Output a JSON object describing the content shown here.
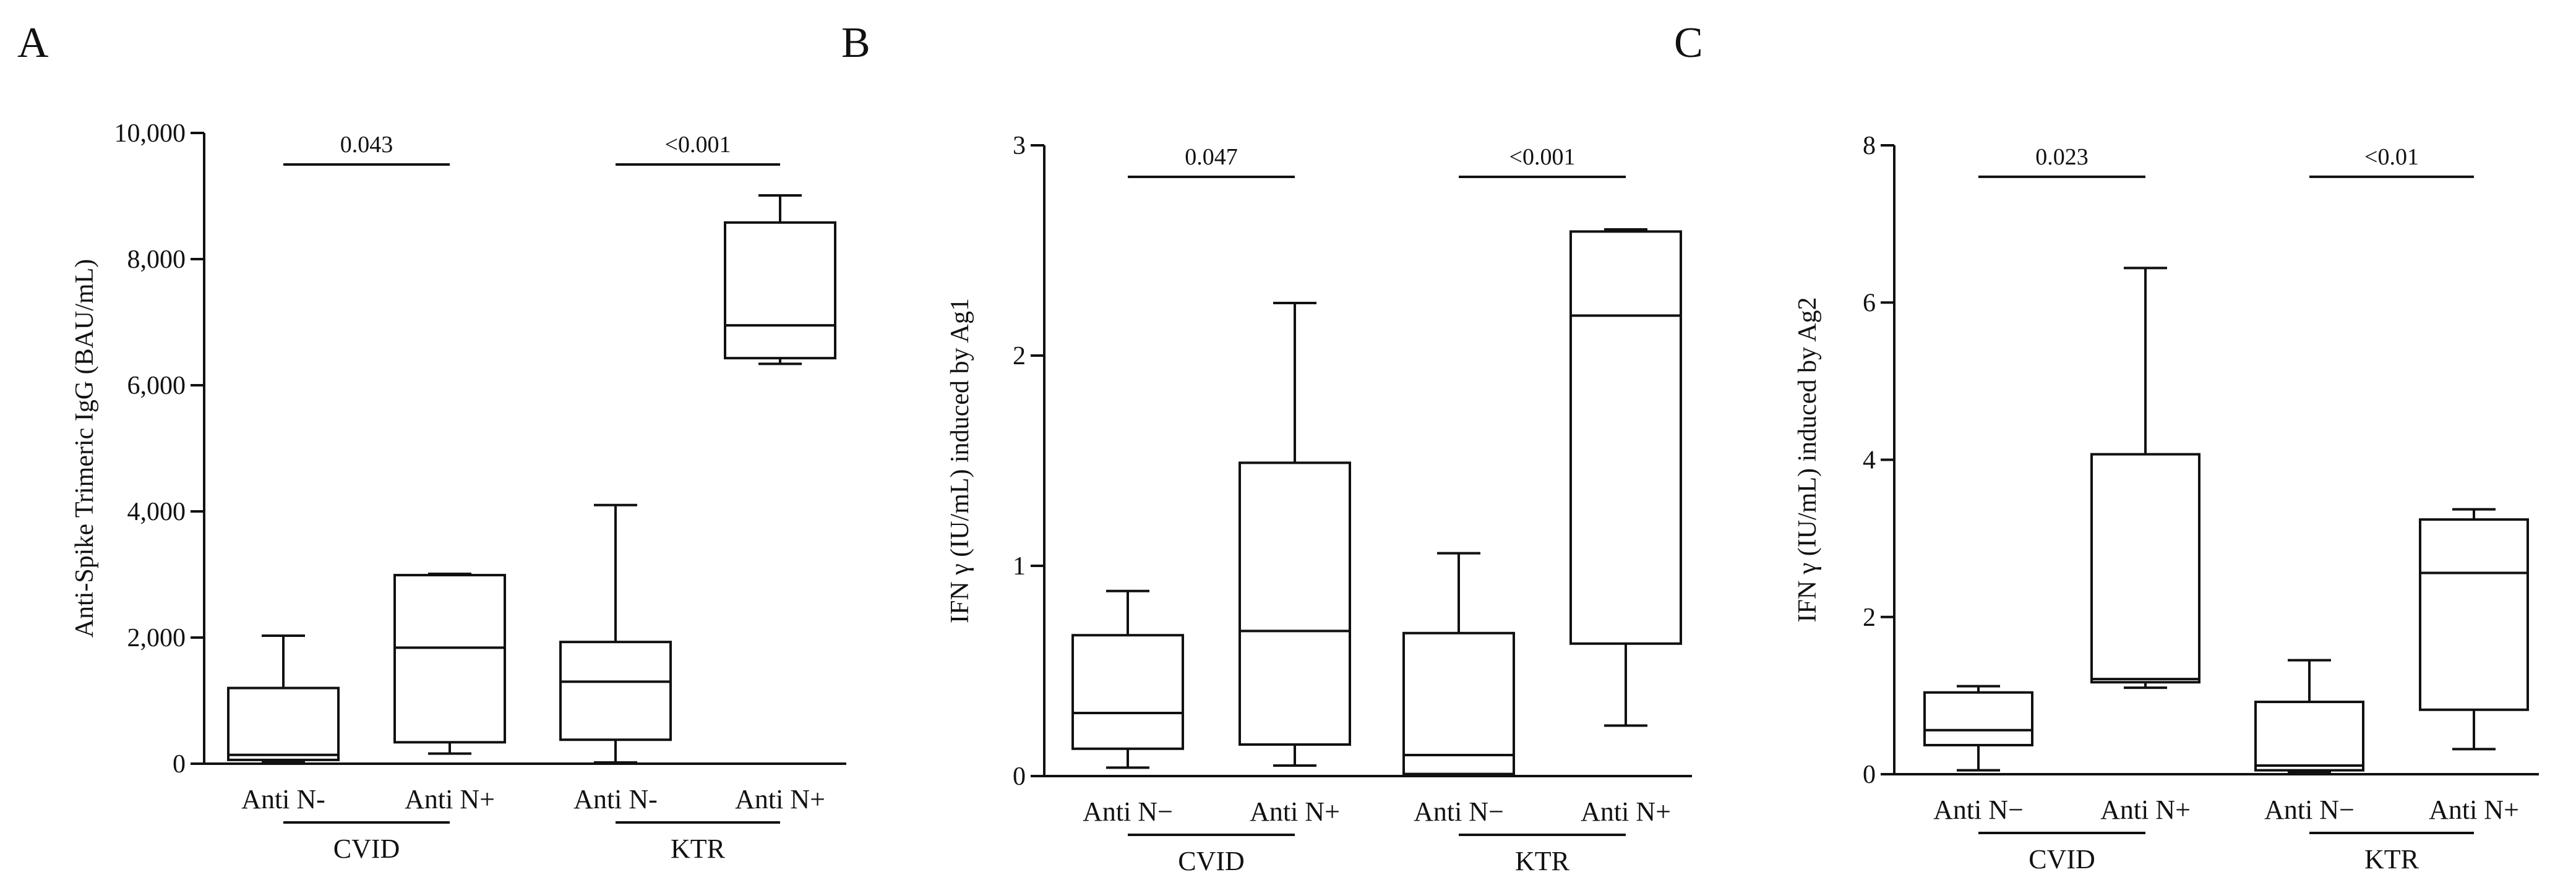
{
  "chart_data": [
    {
      "panel": "A",
      "type": "box",
      "ylabel": "Anti-Spike Trimeric IgG (BAU/mL)",
      "ylim": [
        0,
        10000
      ],
      "yticks": [
        0,
        2000,
        4000,
        6000,
        8000,
        10000
      ],
      "ytick_labels": [
        "0",
        "2,000",
        "4,000",
        "6,000",
        "8,000",
        "10,000"
      ],
      "categories": [
        "Anti N-",
        "Anti N+",
        "Anti N-",
        "Anti N+"
      ],
      "groups": [
        {
          "name": "CVID",
          "members": [
            0,
            1
          ]
        },
        {
          "name": "KTR",
          "members": [
            2,
            3
          ]
        }
      ],
      "boxes": [
        {
          "min": 30,
          "q1": 60,
          "median": 140,
          "q3": 1200,
          "max": 2030
        },
        {
          "min": 160,
          "q1": 340,
          "median": 1840,
          "q3": 2990,
          "max": 3010
        },
        {
          "min": 20,
          "q1": 380,
          "median": 1300,
          "q3": 1930,
          "max": 4100
        },
        {
          "min": 6340,
          "q1": 6430,
          "median": 6950,
          "q3": 8580,
          "max": 9010
        }
      ],
      "comparisons": [
        {
          "label": "0.043",
          "from": 0,
          "to": 1,
          "y": 9500
        },
        {
          "label": "<0.001",
          "from": 2,
          "to": 3,
          "y": 9500
        }
      ]
    },
    {
      "panel": "B",
      "type": "box",
      "ylabel": "IFN γ (IU/mL) induced by Ag1",
      "ylim": [
        0,
        3
      ],
      "yticks": [
        0,
        1,
        2,
        3
      ],
      "ytick_labels": [
        "0",
        "1",
        "2",
        "3"
      ],
      "categories": [
        "Anti N−",
        "Anti N+",
        "Anti N−",
        "Anti N+"
      ],
      "groups": [
        {
          "name": "CVID",
          "members": [
            0,
            1
          ]
        },
        {
          "name": "KTR",
          "members": [
            2,
            3
          ]
        }
      ],
      "boxes": [
        {
          "min": 0.04,
          "q1": 0.13,
          "median": 0.3,
          "q3": 0.67,
          "max": 0.88
        },
        {
          "min": 0.05,
          "q1": 0.15,
          "median": 0.69,
          "q3": 1.49,
          "max": 2.25
        },
        {
          "min": 0.0,
          "q1": 0.01,
          "median": 0.1,
          "q3": 0.68,
          "max": 1.06
        },
        {
          "min": 0.24,
          "q1": 0.63,
          "median": 2.19,
          "q3": 2.59,
          "max": 2.6
        }
      ],
      "comparisons": [
        {
          "label": "0.047",
          "from": 0,
          "to": 1,
          "y": 2.85
        },
        {
          "label": "<0.001",
          "from": 2,
          "to": 3,
          "y": 2.85
        }
      ]
    },
    {
      "panel": "C",
      "type": "box",
      "ylabel": "IFN γ (IU/mL) induced by Ag2",
      "ylim": [
        0,
        8
      ],
      "yticks": [
        0,
        2,
        4,
        6,
        8
      ],
      "ytick_labels": [
        "0",
        "2",
        "4",
        "6",
        "8"
      ],
      "categories": [
        "Anti N−",
        "Anti N+",
        "Anti N−",
        "Anti N+"
      ],
      "groups": [
        {
          "name": "CVID",
          "members": [
            0,
            1
          ]
        },
        {
          "name": "KTR",
          "members": [
            2,
            3
          ]
        }
      ],
      "boxes": [
        {
          "min": 0.05,
          "q1": 0.37,
          "median": 0.56,
          "q3": 1.04,
          "max": 1.12
        },
        {
          "min": 1.1,
          "q1": 1.17,
          "median": 1.21,
          "q3": 4.07,
          "max": 6.44
        },
        {
          "min": 0.02,
          "q1": 0.05,
          "median": 0.11,
          "q3": 0.92,
          "max": 1.45
        },
        {
          "min": 0.32,
          "q1": 0.82,
          "median": 2.56,
          "q3": 3.24,
          "max": 3.37
        }
      ],
      "comparisons": [
        {
          "label": "0.023",
          "from": 0,
          "to": 1,
          "y": 7.6
        },
        {
          "label": "<0.01",
          "from": 2,
          "to": 3,
          "y": 7.6
        }
      ]
    }
  ]
}
